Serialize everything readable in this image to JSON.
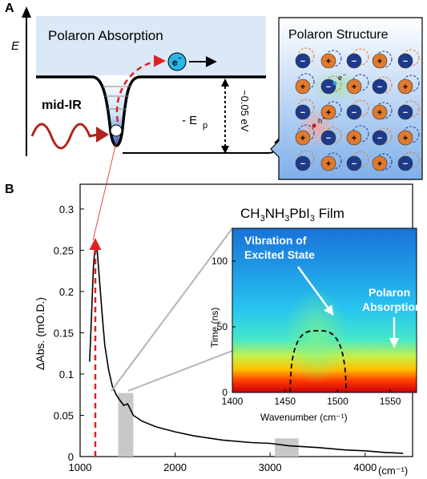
{
  "panel_a": {
    "letter": "A",
    "energy_axis": "E",
    "banner": "Polaron Absorption",
    "electron": "e",
    "electron_sup": "−",
    "excitation": "mid-IR",
    "binding_prefix": "- E",
    "binding_sub": "p",
    "binding_value": "~0.05 eV",
    "structure_title": "Polaron Structure",
    "structure_electron": "e",
    "structure_electron_sup": "−",
    "structure_hole": "h",
    "structure_hole_sup": "+",
    "plus": "+",
    "minus": "−"
  },
  "panel_b": {
    "letter": "B",
    "film_label_parts": [
      "CH",
      "3",
      "NH",
      "3",
      "PbI",
      "3",
      " Film"
    ],
    "inset_annotation_vibration": [
      "Vibration of",
      "Excited State"
    ],
    "inset_annotation_polaron": [
      "Polaron",
      "Absorption"
    ]
  },
  "colors": {
    "electron_fill": "#29b6e8",
    "orange_ion": "#e07a2e",
    "blue_ion": "#1e3a8a",
    "red_dashed": "#e02020",
    "shaded_band": "#c8c8c8",
    "banner_bg": "#dbe8f5"
  },
  "chart_data": [
    {
      "type": "line",
      "title": "",
      "xlabel": "",
      "ylabel": "ΔAbs. (mO.D.)",
      "x_unit_label": "(cm⁻¹)",
      "xlim": [
        1000,
        4500
      ],
      "ylim": [
        0,
        0.33
      ],
      "x_ticks": [
        1000,
        2000,
        3000,
        4000
      ],
      "y_ticks": [
        0,
        0.05,
        0.1,
        0.15,
        0.2,
        0.25,
        0.3
      ],
      "x_tick_labels": [
        "1000",
        "2000",
        "3000",
        "4000"
      ],
      "y_tick_labels": [
        "0",
        "0.05",
        "0.1",
        "0.15",
        "0.2",
        "0.25",
        "0.3"
      ],
      "marked_peak_x": 1160,
      "shaded_regions": [
        [
          1400,
          1560
        ],
        [
          3050,
          3300
        ]
      ],
      "series": [
        {
          "x": [
            1100,
            1120,
            1140,
            1160,
            1180,
            1200,
            1230,
            1260,
            1300,
            1340,
            1380,
            1420,
            1460,
            1500,
            1560,
            1650,
            1800,
            2000,
            2200,
            2500,
            2800,
            3000,
            3200,
            3500,
            3800,
            4000,
            4200,
            4400
          ],
          "y": [
            0.115,
            0.17,
            0.23,
            0.258,
            0.25,
            0.22,
            0.175,
            0.135,
            0.105,
            0.085,
            0.075,
            0.068,
            0.062,
            0.064,
            0.05,
            0.043,
            0.036,
            0.03,
            0.025,
            0.02,
            0.017,
            0.016,
            0.013,
            0.011,
            0.008,
            0.007,
            0.005,
            0.004
          ]
        }
      ]
    },
    {
      "type": "heatmap",
      "title": "",
      "xlabel": "Wavenumber (cm⁻¹)",
      "ylabel": "Time (ns)",
      "xlim": [
        1400,
        1575
      ],
      "ylim": [
        0,
        125
      ],
      "x_ticks": [
        1400,
        1450,
        1500,
        1550
      ],
      "y_ticks": [
        0,
        50,
        100
      ],
      "x_tick_labels": [
        "1400",
        "1450",
        "1500",
        "1550"
      ],
      "y_tick_labels": [
        "0",
        "50",
        "100"
      ],
      "dashed_arc": {
        "x_start": 1455,
        "x_end": 1508,
        "x_peak": 1481,
        "y_peak": 47
      }
    }
  ]
}
